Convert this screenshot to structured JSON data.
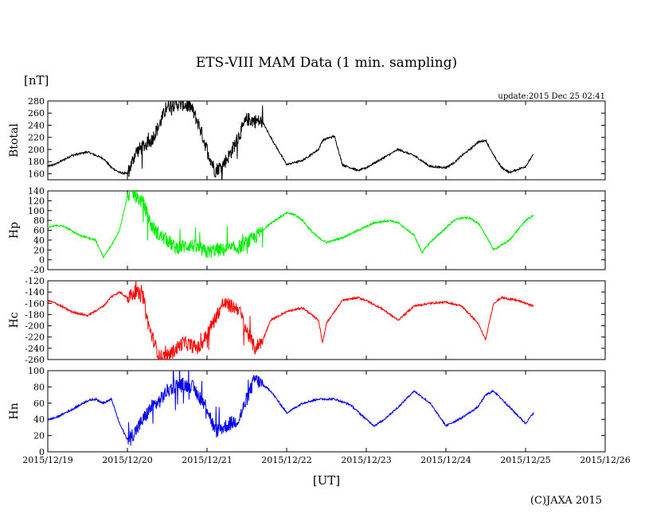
{
  "chart_data": {
    "type": "line",
    "title": "ETS-VIII MAM Data (1 min. sampling)",
    "unit_label": "[nT]",
    "update_label": "update:2015 Dec 25 02:41",
    "xlabel": "[UT]",
    "copyright": "(C)JAXA 2015",
    "x_ticks": [
      "2015/12/19",
      "2015/12/20",
      "2015/12/21",
      "2015/12/22",
      "2015/12/23",
      "2015/12/24",
      "2015/12/25",
      "2015/12/26"
    ],
    "x_range_days": [
      0,
      7
    ],
    "data_end_day": 6.1,
    "panels": [
      {
        "name": "Btotal",
        "color": "#000000",
        "ylim": [
          150,
          280
        ],
        "y_ticks": [
          280,
          260,
          240,
          220,
          200,
          180,
          160
        ],
        "x": [
          0,
          0.1,
          0.3,
          0.5,
          0.7,
          0.8,
          0.9,
          1.0,
          1.05,
          1.1,
          1.2,
          1.3,
          1.4,
          1.5,
          1.6,
          1.7,
          1.8,
          1.9,
          2.0,
          2.1,
          2.2,
          2.3,
          2.5,
          2.7,
          2.8,
          3.0,
          3.2,
          3.4,
          3.45,
          3.5,
          3.6,
          3.7,
          3.9,
          4.0,
          4.2,
          4.4,
          4.6,
          4.8,
          5.0,
          5.1,
          5.2,
          5.3,
          5.4,
          5.5,
          5.6,
          5.7,
          5.8,
          6.0,
          6.1
        ],
        "y": [
          172,
          176,
          190,
          196,
          185,
          170,
          162,
          160,
          175,
          195,
          205,
          215,
          240,
          272,
          275,
          275,
          270,
          240,
          200,
          165,
          175,
          195,
          250,
          245,
          220,
          175,
          182,
          200,
          215,
          218,
          222,
          175,
          165,
          170,
          185,
          200,
          190,
          172,
          170,
          178,
          190,
          200,
          212,
          215,
          190,
          170,
          162,
          172,
          192
        ]
      },
      {
        "name": "Hp",
        "color": "#00ee00",
        "ylim": [
          -20,
          140
        ],
        "y_ticks": [
          140,
          120,
          100,
          80,
          60,
          40,
          20,
          0,
          -20
        ],
        "x": [
          0,
          0.1,
          0.2,
          0.4,
          0.6,
          0.7,
          0.8,
          0.9,
          1.0,
          1.05,
          1.1,
          1.2,
          1.3,
          1.4,
          1.5,
          1.6,
          1.8,
          2.0,
          2.1,
          2.2,
          2.4,
          2.6,
          2.8,
          3.0,
          3.1,
          3.2,
          3.3,
          3.4,
          3.5,
          3.7,
          3.9,
          4.1,
          4.3,
          4.4,
          4.6,
          4.7,
          4.8,
          5.0,
          5.1,
          5.2,
          5.3,
          5.4,
          5.5,
          5.6,
          5.8,
          6.0,
          6.1
        ],
        "y": [
          65,
          70,
          68,
          50,
          40,
          5,
          30,
          60,
          130,
          135,
          130,
          115,
          70,
          50,
          40,
          25,
          30,
          15,
          20,
          20,
          25,
          45,
          75,
          95,
          92,
          80,
          60,
          45,
          35,
          45,
          60,
          75,
          80,
          75,
          50,
          15,
          35,
          65,
          80,
          85,
          85,
          75,
          50,
          20,
          40,
          80,
          90
        ]
      },
      {
        "name": "Hc",
        "color": "#ff0000",
        "ylim": [
          -260,
          -120
        ],
        "y_ticks": [
          -120,
          -140,
          -160,
          -180,
          -200,
          -220,
          -240,
          -260
        ],
        "x": [
          0,
          0.1,
          0.3,
          0.5,
          0.7,
          0.8,
          0.9,
          1.0,
          1.1,
          1.2,
          1.25,
          1.3,
          1.4,
          1.5,
          1.7,
          1.9,
          2.0,
          2.2,
          2.4,
          2.5,
          2.6,
          2.7,
          2.8,
          3.0,
          3.2,
          3.4,
          3.45,
          3.5,
          3.7,
          3.9,
          4.0,
          4.2,
          4.4,
          4.6,
          4.8,
          5.0,
          5.2,
          5.4,
          5.5,
          5.55,
          5.6,
          5.7,
          5.9,
          6.1
        ],
        "y": [
          -155,
          -160,
          -175,
          -182,
          -165,
          -148,
          -140,
          -150,
          -140,
          -150,
          -190,
          -215,
          -255,
          -255,
          -230,
          -240,
          -215,
          -160,
          -170,
          -210,
          -240,
          -225,
          -190,
          -175,
          -168,
          -190,
          -230,
          -195,
          -155,
          -150,
          -155,
          -170,
          -190,
          -165,
          -160,
          -158,
          -165,
          -195,
          -225,
          -190,
          -160,
          -150,
          -155,
          -165
        ]
      },
      {
        "name": "Hn",
        "color": "#0000ee",
        "ylim": [
          0,
          100
        ],
        "y_ticks": [
          100,
          80,
          60,
          40,
          20,
          0
        ],
        "x": [
          0,
          0.1,
          0.3,
          0.5,
          0.6,
          0.7,
          0.8,
          0.9,
          1.0,
          1.1,
          1.2,
          1.3,
          1.4,
          1.5,
          1.6,
          1.8,
          2.0,
          2.1,
          2.2,
          2.3,
          2.4,
          2.5,
          2.6,
          2.8,
          3.0,
          3.2,
          3.4,
          3.6,
          3.8,
          4.0,
          4.1,
          4.2,
          4.4,
          4.6,
          4.8,
          5.0,
          5.2,
          5.4,
          5.5,
          5.6,
          5.8,
          6.0,
          6.1
        ],
        "y": [
          40,
          42,
          52,
          63,
          65,
          60,
          65,
          35,
          15,
          25,
          40,
          55,
          62,
          75,
          82,
          82,
          55,
          25,
          30,
          35,
          40,
          65,
          90,
          75,
          48,
          60,
          65,
          65,
          58,
          40,
          32,
          38,
          55,
          75,
          60,
          32,
          42,
          55,
          70,
          75,
          55,
          35,
          48
        ]
      }
    ]
  }
}
